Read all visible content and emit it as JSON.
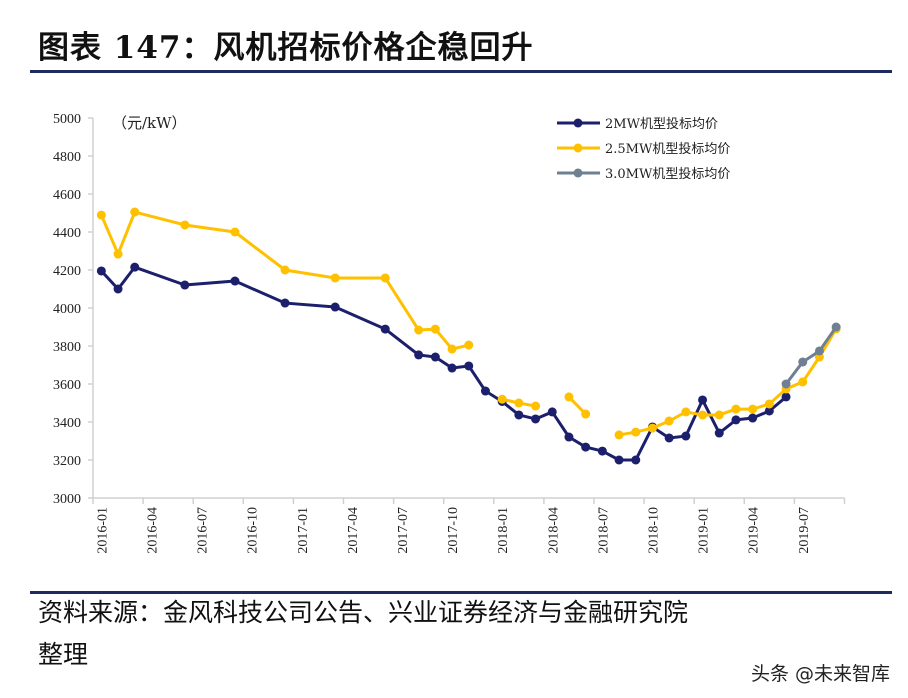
{
  "header": {
    "title": "图表 147：风机招标价格企稳回升"
  },
  "source": {
    "line1": "资料来源：金风科技公司公告、兴业证券经济与金融研究院",
    "line2": "整理"
  },
  "watermark": "头条 @未来智库",
  "colors": {
    "rule": "#1f2a5e",
    "s2mw": "#1c1f6b",
    "s25mw": "#ffc000",
    "s3mw": "#6e8092",
    "axis": "#d0d0d0"
  },
  "chart_data": {
    "type": "line",
    "unit_label": "（元/kW）",
    "ylim": [
      3000,
      5000
    ],
    "yticks": [
      3000,
      3200,
      3400,
      3600,
      3800,
      4000,
      4200,
      4400,
      4600,
      4800,
      5000
    ],
    "xlabels": [
      "2016-01",
      "2016-04",
      "2016-07",
      "2016-10",
      "2017-01",
      "2017-04",
      "2017-07",
      "2017-10",
      "2018-01",
      "2018-04",
      "2018-07",
      "2018-10",
      "2019-01",
      "2019-04",
      "2019-07"
    ],
    "x_range": [
      "2016-01",
      "2019-09"
    ],
    "grid": false,
    "legend_position": "top-right",
    "series": [
      {
        "name": "2MW机型投标均价",
        "color": "#1c1f6b",
        "points": [
          [
            "2016-01",
            4195
          ],
          [
            "2016-02",
            4100
          ],
          [
            "2016-03",
            4215
          ],
          [
            "2016-06",
            4121
          ],
          [
            "2016-09",
            4142
          ],
          [
            "2016-12",
            4026
          ],
          [
            "2017-03",
            4005
          ],
          [
            "2017-06",
            3889
          ],
          [
            "2017-08",
            3753
          ],
          [
            "2017-09",
            3742
          ],
          [
            "2017-10",
            3684
          ],
          [
            "2017-11",
            3695
          ],
          [
            "2017-12",
            3563
          ],
          [
            "2018-01",
            3508
          ],
          [
            "2018-02",
            3437
          ],
          [
            "2018-03",
            3416
          ],
          [
            "2018-04",
            3453
          ],
          [
            "2018-05",
            3321
          ],
          [
            "2018-06",
            3268
          ],
          [
            "2018-07",
            3247
          ],
          [
            "2018-08",
            3200
          ],
          [
            "2018-09",
            3200
          ],
          [
            "2018-10",
            3374
          ],
          [
            "2018-11",
            3316
          ],
          [
            "2018-12",
            3326
          ],
          [
            "2019-01",
            3516
          ],
          [
            "2019-02",
            3342
          ],
          [
            "2019-03",
            3411
          ],
          [
            "2019-04",
            3421
          ],
          [
            "2019-05",
            3458
          ],
          [
            "2019-06",
            3532
          ]
        ]
      },
      {
        "name": "2.5MW机型投标均价",
        "color": "#ffc000",
        "points": [
          [
            "2016-01",
            4489
          ],
          [
            "2016-02",
            4284
          ],
          [
            "2016-03",
            4505
          ],
          [
            "2016-06",
            4437
          ],
          [
            "2016-09",
            4400
          ],
          [
            "2016-12",
            4200
          ],
          [
            "2017-03",
            4158
          ],
          [
            "2017-06",
            4158
          ],
          [
            "2017-08",
            3884
          ],
          [
            "2017-09",
            3889
          ],
          [
            "2017-10",
            3784
          ],
          [
            "2017-11",
            3805
          ],
          null,
          [
            "2018-01",
            3520
          ],
          [
            "2018-02",
            3500
          ],
          [
            "2018-03",
            3484
          ],
          null,
          [
            "2018-05",
            3532
          ],
          [
            "2018-06",
            3442
          ],
          null,
          [
            "2018-08",
            3332
          ],
          [
            "2018-09",
            3347
          ],
          [
            "2018-10",
            3368
          ],
          [
            "2018-11",
            3405
          ],
          [
            "2018-12",
            3453
          ],
          [
            "2019-01",
            3437
          ],
          [
            "2019-02",
            3437
          ],
          [
            "2019-03",
            3468
          ],
          [
            "2019-04",
            3468
          ],
          [
            "2019-05",
            3495
          ],
          [
            "2019-06",
            3574
          ],
          [
            "2019-07",
            3611
          ],
          [
            "2019-08",
            3742
          ],
          [
            "2019-09",
            3890
          ]
        ]
      },
      {
        "name": "3.0MW机型投标均价",
        "color": "#6e8092",
        "points": [
          [
            "2019-06",
            3600
          ],
          [
            "2019-07",
            3716
          ],
          [
            "2019-08",
            3774
          ],
          [
            "2019-09",
            3900
          ]
        ]
      }
    ]
  }
}
